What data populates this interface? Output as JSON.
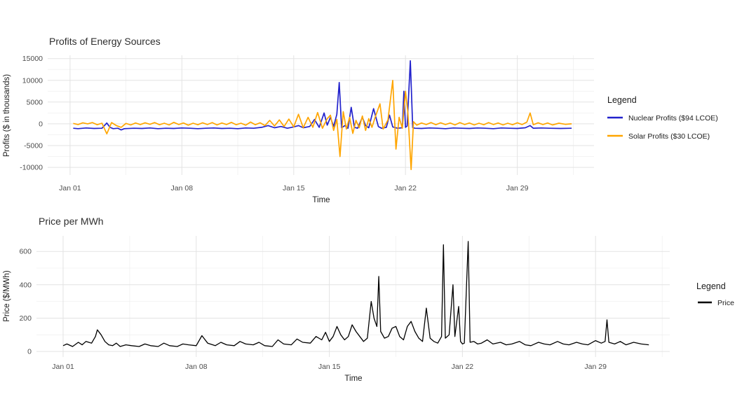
{
  "page": {
    "background": "#ffffff"
  },
  "chart_data": [
    {
      "id": "profits-of-energy-sources",
      "type": "line",
      "title": "Profits of Energy Sources",
      "xlabel": "Time",
      "ylabel": "Profits ($ in thousands)",
      "legend_title": "Legend",
      "legend_position": "right",
      "grid": true,
      "x_unit": "day of January",
      "xlim": [
        -0.4,
        33.8
      ],
      "ylim": [
        -11750,
        15750
      ],
      "yticks": [
        15000,
        10000,
        5000,
        0,
        -5000,
        -10000
      ],
      "yticks_minor": [
        12500,
        7500,
        2500,
        -2500,
        -7500
      ],
      "xticks": [
        {
          "label": "Jan 01",
          "day": 1
        },
        {
          "label": "Jan 08",
          "day": 8
        },
        {
          "label": "Jan 15",
          "day": 15
        },
        {
          "label": "Jan 22",
          "day": 22
        },
        {
          "label": "Jan 29",
          "day": 29
        }
      ],
      "xticks_minor_days": [
        4.5,
        11.5,
        18.5,
        25.5,
        32.5
      ],
      "grid_color_major": "#e3e3e3",
      "grid_color_minor": "#f0f0f0",
      "series": [
        {
          "name": "Nuclear Profits ($94 LCOE)",
          "color": "#2222cc",
          "x": [
            1.2,
            1.5,
            2.0,
            2.5,
            3.0,
            3.3,
            3.5,
            3.7,
            4.0,
            4.2,
            4.4,
            5.0,
            5.5,
            6.0,
            6.5,
            7.0,
            7.5,
            8.0,
            8.5,
            9.0,
            9.5,
            10.0,
            10.5,
            11.0,
            11.5,
            12.0,
            12.5,
            13.0,
            13.4,
            13.8,
            14.2,
            14.6,
            15.0,
            15.3,
            15.6,
            16.0,
            16.3,
            16.6,
            16.9,
            17.1,
            17.3,
            17.5,
            17.7,
            17.85,
            18.0,
            18.2,
            18.4,
            18.6,
            18.8,
            19.0,
            19.3,
            19.5,
            19.7,
            20.0,
            20.3,
            20.5,
            20.8,
            21.0,
            21.2,
            21.5,
            21.8,
            21.9,
            22.0,
            22.1,
            22.3,
            22.45,
            22.6,
            23.0,
            23.5,
            24.0,
            24.5,
            25.0,
            25.5,
            26.0,
            26.5,
            27.0,
            27.5,
            28.0,
            28.5,
            29.0,
            29.5,
            29.8,
            30.0,
            30.5,
            31.0,
            31.7,
            32.4
          ],
          "values": [
            -1000,
            -1100,
            -950,
            -1050,
            -1000,
            200,
            -800,
            -1100,
            -1000,
            -1400,
            -1100,
            -1000,
            -1050,
            -950,
            -1100,
            -1000,
            -1050,
            -950,
            -1000,
            -1100,
            -1000,
            -950,
            -1050,
            -1000,
            -1100,
            -950,
            -1000,
            -800,
            -400,
            -900,
            -600,
            -1000,
            -700,
            -400,
            -900,
            -600,
            1000,
            -800,
            2500,
            -300,
            1500,
            -600,
            2200,
            9500,
            -900,
            -400,
            -1000,
            3800,
            -800,
            -1000,
            1500,
            -400,
            -900,
            3500,
            -600,
            -1000,
            -800,
            2000,
            -700,
            -1000,
            -900,
            7500,
            -800,
            -500,
            14500,
            -900,
            -1000,
            -1050,
            -950,
            -1000,
            -1100,
            -950,
            -1000,
            -1050,
            -950,
            -1000,
            -1100,
            -950,
            -1000,
            -1050,
            -900,
            -400,
            -1000,
            -950,
            -1000,
            -1050,
            -1000
          ]
        },
        {
          "name": "Solar Profits ($30 LCOE)",
          "color": "#ffa500",
          "x": [
            1.2,
            1.5,
            1.8,
            2.1,
            2.4,
            2.7,
            3.0,
            3.3,
            3.6,
            3.9,
            4.2,
            4.5,
            4.8,
            5.1,
            5.4,
            5.7,
            6.0,
            6.3,
            6.6,
            6.9,
            7.2,
            7.5,
            7.8,
            8.1,
            8.4,
            8.7,
            9.0,
            9.3,
            9.6,
            9.9,
            10.2,
            10.5,
            10.8,
            11.1,
            11.4,
            11.7,
            12.0,
            12.3,
            12.6,
            12.9,
            13.2,
            13.5,
            13.8,
            14.1,
            14.4,
            14.7,
            15.0,
            15.3,
            15.6,
            15.9,
            16.2,
            16.5,
            16.8,
            17.1,
            17.3,
            17.5,
            17.7,
            17.9,
            18.1,
            18.3,
            18.5,
            18.7,
            18.9,
            19.1,
            19.3,
            19.5,
            19.7,
            19.9,
            20.1,
            20.4,
            20.6,
            20.9,
            21.2,
            21.4,
            21.6,
            21.8,
            22.0,
            22.15,
            22.35,
            22.5,
            22.7,
            23.0,
            23.3,
            23.6,
            23.9,
            24.2,
            24.5,
            24.8,
            25.1,
            25.4,
            25.7,
            26.0,
            26.3,
            26.6,
            26.9,
            27.2,
            27.5,
            27.8,
            28.1,
            28.4,
            28.7,
            29.0,
            29.3,
            29.6,
            29.8,
            30.0,
            30.3,
            30.6,
            30.9,
            31.2,
            31.6,
            32.0,
            32.4
          ],
          "values": [
            100,
            -150,
            250,
            0,
            300,
            -200,
            150,
            -2300,
            300,
            -400,
            -800,
            100,
            -250,
            200,
            -150,
            250,
            -100,
            300,
            -200,
            150,
            -250,
            350,
            -150,
            200,
            -300,
            150,
            -200,
            250,
            -150,
            300,
            -250,
            200,
            -150,
            350,
            -200,
            150,
            -300,
            400,
            -200,
            250,
            -400,
            800,
            -500,
            900,
            -600,
            1100,
            -700,
            2200,
            -900,
            1500,
            -800,
            2600,
            -1000,
            1200,
            2000,
            -1500,
            1000,
            -7500,
            2800,
            -1200,
            1500,
            -2200,
            800,
            -900,
            1800,
            -1500,
            1200,
            -800,
            1500,
            4600,
            -1200,
            900,
            10000,
            -5800,
            1500,
            -1000,
            7500,
            2600,
            -10500,
            500,
            -300,
            200,
            -150,
            300,
            -200,
            250,
            -150,
            200,
            -250,
            300,
            -150,
            200,
            -250,
            150,
            -200,
            300,
            -150,
            200,
            -250,
            150,
            -200,
            250,
            -150,
            400,
            2500,
            -200,
            250,
            -150,
            200,
            -250,
            150,
            -100,
            0
          ]
        }
      ]
    },
    {
      "id": "price-per-mwh",
      "type": "line",
      "title": "Price per MWh",
      "xlabel": "Time",
      "ylabel": "Price ($/MWh)",
      "legend_title": "Legend",
      "legend_position": "right",
      "grid": true,
      "x_unit": "day of January",
      "xlim": [
        -0.4,
        32.9
      ],
      "ylim": [
        -33,
        693
      ],
      "yticks": [
        0,
        200,
        400,
        600
      ],
      "yticks_minor": [
        100,
        300,
        500
      ],
      "xticks": [
        {
          "label": "Jan 01",
          "day": 1
        },
        {
          "label": "Jan 08",
          "day": 8
        },
        {
          "label": "Jan 15",
          "day": 15
        },
        {
          "label": "Jan 22",
          "day": 22
        },
        {
          "label": "Jan 29",
          "day": 29
        }
      ],
      "xticks_minor_days": [
        4.5,
        11.5,
        18.5,
        25.5,
        32.5
      ],
      "grid_color_major": "#e3e3e3",
      "grid_color_minor": "#f0f0f0",
      "series": [
        {
          "name": "Price",
          "color": "#000000",
          "x": [
            1.0,
            1.2,
            1.5,
            1.8,
            2.0,
            2.2,
            2.5,
            2.7,
            2.8,
            3.0,
            3.2,
            3.4,
            3.6,
            3.8,
            4.0,
            4.3,
            4.6,
            5.0,
            5.3,
            5.6,
            6.0,
            6.3,
            6.6,
            7.0,
            7.3,
            7.6,
            8.0,
            8.3,
            8.6,
            9.0,
            9.3,
            9.6,
            10.0,
            10.3,
            10.6,
            11.0,
            11.3,
            11.6,
            12.0,
            12.3,
            12.6,
            13.0,
            13.3,
            13.6,
            14.0,
            14.3,
            14.6,
            14.8,
            15.0,
            15.2,
            15.4,
            15.6,
            15.8,
            16.0,
            16.2,
            16.4,
            16.6,
            16.8,
            17.0,
            17.2,
            17.35,
            17.5,
            17.6,
            17.7,
            17.9,
            18.1,
            18.3,
            18.5,
            18.7,
            18.9,
            19.1,
            19.3,
            19.5,
            19.7,
            19.9,
            20.1,
            20.3,
            20.5,
            20.7,
            20.9,
            21.0,
            21.1,
            21.3,
            21.5,
            21.6,
            21.8,
            21.9,
            22.0,
            22.1,
            22.3,
            22.4,
            22.6,
            22.8,
            23.0,
            23.3,
            23.6,
            24.0,
            24.3,
            24.6,
            25.0,
            25.3,
            25.6,
            26.0,
            26.3,
            26.6,
            27.0,
            27.3,
            27.6,
            28.0,
            28.3,
            28.6,
            29.0,
            29.3,
            29.5,
            29.6,
            29.7,
            30.0,
            30.3,
            30.6,
            31.0,
            31.4,
            31.8
          ],
          "values": [
            35,
            45,
            30,
            55,
            40,
            60,
            50,
            90,
            130,
            100,
            60,
            40,
            35,
            50,
            30,
            40,
            35,
            30,
            45,
            35,
            30,
            50,
            35,
            30,
            45,
            40,
            35,
            95,
            50,
            35,
            55,
            40,
            35,
            60,
            45,
            40,
            55,
            35,
            30,
            70,
            45,
            40,
            75,
            55,
            50,
            90,
            70,
            115,
            60,
            90,
            150,
            100,
            70,
            90,
            160,
            120,
            90,
            60,
            80,
            300,
            200,
            150,
            450,
            120,
            80,
            90,
            140,
            150,
            90,
            70,
            150,
            180,
            120,
            80,
            60,
            260,
            80,
            60,
            50,
            90,
            640,
            80,
            100,
            400,
            90,
            270,
            60,
            45,
            50,
            660,
            55,
            60,
            45,
            50,
            70,
            45,
            55,
            40,
            45,
            60,
            40,
            35,
            55,
            45,
            40,
            60,
            45,
            40,
            55,
            45,
            40,
            65,
            50,
            60,
            190,
            55,
            45,
            60,
            40,
            55,
            45,
            40
          ]
        }
      ]
    }
  ]
}
